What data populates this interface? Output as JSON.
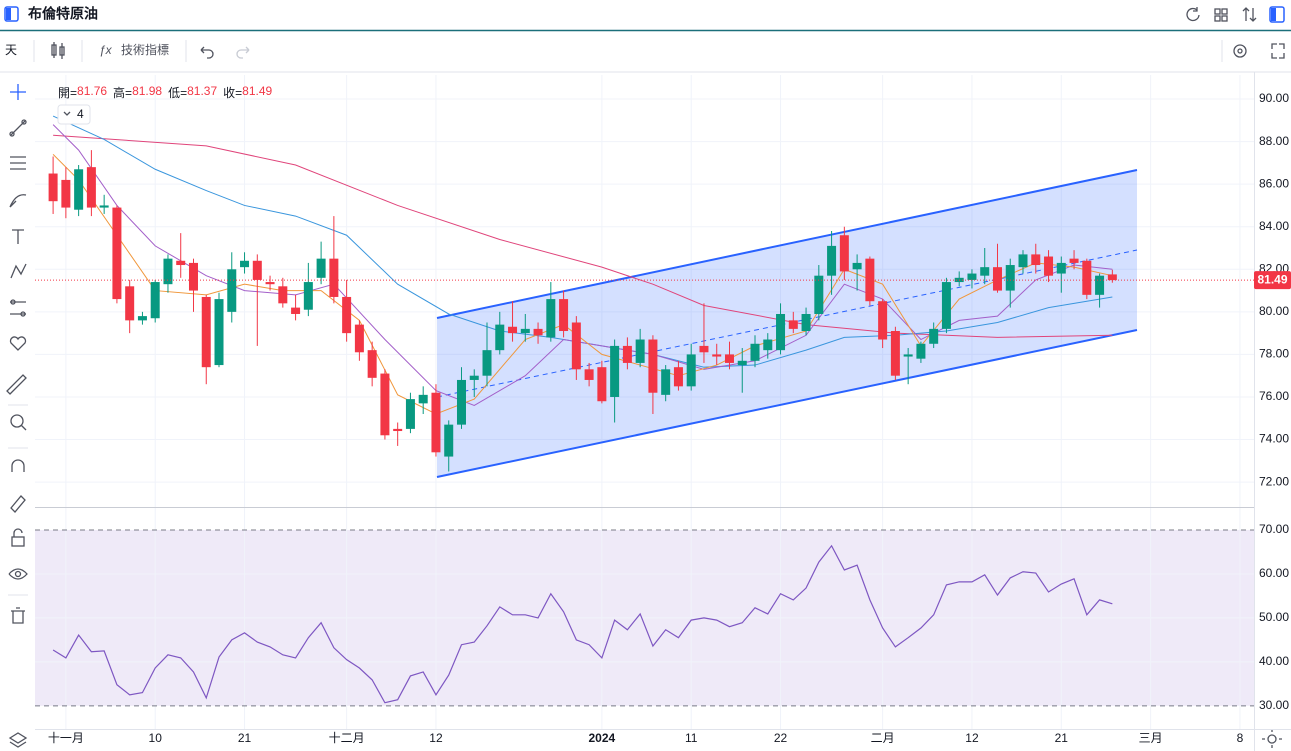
{
  "header": {
    "title": "布倫特原油"
  },
  "toolbar": {
    "interval": "天",
    "indicators": "技術指標",
    "indicator_count": 4
  },
  "chart_data": {
    "type": "candlestick",
    "up_color": "#089981",
    "down_color": "#f23645",
    "open": [
      86.5,
      86.2,
      84.8,
      86.8,
      84.9,
      84.9,
      81.2,
      79.6,
      79.7,
      81.3,
      82.4,
      82.3,
      80.7,
      77.5,
      80.0,
      82.1,
      82.4,
      81.4,
      81.2,
      80.2,
      80.1,
      81.6,
      82.5,
      80.7,
      79.4,
      78.2,
      77.1,
      74.5,
      74.5,
      75.7,
      76.2,
      73.2,
      74.7,
      76.8,
      77.0,
      78.2,
      79.3,
      79.0,
      79.2,
      78.8,
      80.6,
      79.5,
      77.3,
      77.4,
      76.0,
      78.4,
      77.6,
      78.7,
      76.1,
      77.4,
      76.5,
      78.4,
      78.0,
      78.0,
      77.5,
      77.7,
      78.2,
      78.2,
      79.6,
      79.1,
      79.9,
      81.7,
      83.6,
      82.0,
      82.5,
      80.5,
      79.1,
      77.9,
      77.8,
      78.5,
      79.2,
      81.4,
      81.5,
      81.7,
      82.1,
      81.0,
      82.1,
      82.7,
      82.6,
      81.8,
      82.5,
      82.4,
      80.8,
      81.76
    ],
    "high": [
      87.3,
      86.8,
      86.9,
      87.6,
      85.5,
      85.0,
      81.5,
      80.0,
      81.5,
      82.7,
      83.7,
      82.5,
      80.8,
      80.9,
      82.8,
      82.8,
      82.7,
      81.7,
      81.6,
      80.8,
      82.3,
      83.3,
      84.5,
      81.5,
      79.6,
      78.6,
      77.3,
      74.8,
      76.2,
      76.5,
      76.6,
      74.9,
      77.4,
      77.3,
      79.5,
      80.0,
      80.5,
      79.9,
      79.5,
      81.4,
      81.0,
      79.8,
      77.6,
      77.7,
      78.7,
      78.8,
      79.2,
      78.9,
      77.5,
      77.7,
      78.5,
      80.4,
      78.5,
      78.6,
      78.3,
      78.9,
      79.0,
      80.4,
      80.0,
      80.2,
      82.2,
      83.8,
      84.0,
      82.7,
      82.6,
      80.6,
      79.3,
      78.3,
      78.6,
      79.5,
      81.6,
      81.9,
      82.0,
      83.0,
      83.2,
      82.5,
      82.9,
      83.2,
      82.9,
      82.6,
      82.9,
      82.5,
      81.8,
      81.98
    ],
    "low": [
      84.6,
      84.4,
      84.5,
      84.5,
      84.6,
      80.4,
      79.0,
      79.4,
      79.5,
      80.9,
      81.6,
      80.0,
      76.6,
      77.4,
      79.5,
      81.8,
      78.4,
      81.0,
      80.2,
      79.6,
      79.8,
      81.3,
      80.4,
      78.6,
      77.7,
      76.5,
      74.0,
      73.7,
      74.3,
      75.2,
      73.2,
      72.5,
      74.5,
      76.0,
      76.5,
      78.0,
      78.6,
      78.6,
      78.5,
      78.6,
      78.8,
      76.8,
      76.5,
      75.7,
      74.8,
      77.3,
      77.4,
      75.2,
      75.8,
      76.3,
      76.3,
      77.6,
      77.5,
      77.3,
      76.2,
      77.4,
      77.8,
      78.0,
      79.0,
      78.9,
      79.6,
      80.8,
      81.5,
      81.0,
      80.3,
      78.3,
      76.8,
      76.6,
      77.6,
      78.3,
      79.0,
      81.2,
      81.1,
      81.3,
      80.9,
      80.2,
      81.8,
      81.8,
      81.4,
      80.9,
      82.0,
      80.6,
      80.2,
      81.37
    ],
    "close": [
      85.2,
      84.9,
      86.7,
      84.9,
      85.0,
      80.6,
      79.6,
      79.8,
      81.4,
      82.5,
      82.2,
      81.0,
      77.4,
      80.6,
      82.0,
      82.4,
      81.5,
      81.3,
      80.4,
      79.9,
      81.4,
      82.5,
      80.7,
      79.0,
      78.1,
      76.9,
      74.2,
      74.4,
      75.9,
      76.1,
      73.4,
      74.7,
      76.8,
      77.0,
      78.2,
      79.4,
      79.0,
      79.2,
      78.9,
      80.6,
      79.1,
      77.3,
      76.8,
      75.8,
      78.4,
      77.6,
      78.7,
      76.2,
      77.3,
      76.5,
      78.0,
      78.1,
      77.9,
      77.6,
      77.7,
      78.5,
      78.7,
      79.9,
      79.2,
      79.9,
      81.7,
      83.1,
      81.9,
      82.3,
      80.5,
      78.7,
      77.0,
      78.0,
      78.5,
      79.2,
      81.4,
      81.6,
      81.8,
      82.1,
      81.0,
      82.2,
      82.7,
      82.2,
      81.7,
      82.3,
      82.3,
      80.8,
      81.7,
      81.49
    ],
    "overlays": [
      {
        "color": "#e0457b",
        "x": [
          0,
          12,
          19,
          27,
          35,
          43,
          47,
          51,
          59,
          66,
          74,
          83
        ],
        "values": [
          88.3,
          87.8,
          86.9,
          85.0,
          83.4,
          82.1,
          81.3,
          80.3,
          79.4,
          79.0,
          78.8,
          78.9
        ]
      },
      {
        "color": "#3a96dd",
        "x": [
          0,
          4,
          8,
          12,
          15,
          19,
          23,
          27,
          31,
          35,
          39,
          43,
          47,
          51,
          55,
          59,
          62,
          66,
          70,
          74,
          78,
          83
        ],
        "values": [
          89.2,
          88.1,
          86.7,
          85.7,
          85.0,
          84.5,
          83.6,
          81.3,
          79.9,
          79.1,
          78.8,
          78.4,
          78.0,
          77.4,
          77.5,
          78.2,
          78.8,
          78.9,
          79.1,
          79.5,
          80.2,
          80.7
        ]
      },
      {
        "color": "#a35fc9",
        "x": [
          0,
          2,
          5,
          8,
          12,
          15,
          19,
          22,
          26,
          30,
          33,
          37,
          40,
          43,
          47,
          51,
          55,
          59,
          62,
          65,
          68,
          71,
          74,
          77,
          80,
          83
        ],
        "values": [
          88.8,
          87.6,
          85.0,
          83.1,
          81.7,
          81.0,
          80.8,
          81.3,
          78.7,
          76.3,
          75.6,
          77.0,
          78.7,
          78.4,
          78.0,
          77.3,
          77.7,
          78.9,
          81.3,
          80.6,
          78.7,
          79.6,
          79.8,
          81.5,
          82.2,
          82.0
        ]
      },
      {
        "color": "#f0973b",
        "x": [
          0,
          2,
          5,
          8,
          12,
          15,
          18,
          21,
          24,
          27,
          30,
          33,
          37,
          40,
          43,
          46,
          49,
          52,
          55,
          59,
          62,
          65,
          68,
          71,
          74,
          77,
          80,
          83
        ],
        "values": [
          87.4,
          86.2,
          83.6,
          81.0,
          80.8,
          81.3,
          81.0,
          81.0,
          79.6,
          76.1,
          75.2,
          75.9,
          78.7,
          79.4,
          78.0,
          77.5,
          77.0,
          77.5,
          78.4,
          79.1,
          82.0,
          81.3,
          78.4,
          80.6,
          81.5,
          82.3,
          82.1,
          81.7
        ]
      }
    ],
    "ohlc_legend": [
      {
        "label": "開=",
        "value": 81.76
      },
      {
        "label": "高=",
        "value": 81.98
      },
      {
        "label": "低=",
        "value": 81.37
      },
      {
        "label": "收=",
        "value": 81.49
      }
    ],
    "last_price": 81.49,
    "last_price_color": "#f23645",
    "xlim": [
      -0.4,
      94.1
    ],
    "xticks": [
      {
        "value": 1,
        "label": "十一月"
      },
      {
        "value": 8,
        "label": "10"
      },
      {
        "value": 15,
        "label": "21"
      },
      {
        "value": 23,
        "label": "十二月"
      },
      {
        "value": 30,
        "label": "12"
      },
      {
        "value": 43,
        "label": "2024"
      },
      {
        "value": 50,
        "label": "11"
      },
      {
        "value": 57,
        "label": "22"
      },
      {
        "value": 65,
        "label": "二月"
      },
      {
        "value": 72,
        "label": "12"
      },
      {
        "value": 79,
        "label": "21"
      },
      {
        "value": 86,
        "label": "三月"
      },
      {
        "value": 93,
        "label": "8"
      }
    ],
    "ylim": [
      70.83,
      91.13
    ],
    "yticks": [
      {
        "value": 72,
        "label": "72.00"
      },
      {
        "value": 74,
        "label": "74.00"
      },
      {
        "value": 76,
        "label": "76.00"
      },
      {
        "value": 78,
        "label": "78.00"
      },
      {
        "value": 80,
        "label": "80.00"
      },
      {
        "value": 82,
        "label": "82.00"
      },
      {
        "value": 84,
        "label": "84.00"
      },
      {
        "value": 86,
        "label": "86.00"
      },
      {
        "value": 88,
        "label": "88.00"
      },
      {
        "value": 90,
        "label": "90.00"
      }
    ],
    "grid": true,
    "rsi": {
      "color": "#7e57c2",
      "band_color": "#efeaf8",
      "values": [
        42.7,
        40.9,
        46.1,
        42.3,
        42.5,
        34.8,
        32.5,
        33.0,
        38.6,
        41.6,
        40.9,
        37.7,
        31.8,
        41.1,
        45.0,
        46.6,
        44.5,
        43.4,
        41.6,
        40.9,
        45.5,
        48.9,
        43.2,
        40.5,
        38.6,
        35.9,
        30.7,
        31.4,
        36.8,
        37.7,
        32.5,
        37.0,
        43.9,
        44.5,
        48.2,
        52.5,
        50.7,
        50.7,
        50.0,
        55.5,
        51.4,
        45.0,
        43.9,
        40.9,
        49.5,
        47.3,
        50.9,
        43.6,
        47.3,
        45.5,
        49.5,
        50.0,
        49.5,
        48.0,
        48.9,
        52.3,
        50.9,
        55.5,
        54.1,
        56.8,
        62.7,
        66.4,
        60.9,
        62.0,
        54.1,
        47.7,
        43.4,
        45.5,
        47.7,
        50.7,
        57.5,
        58.2,
        58.2,
        59.8,
        55.2,
        59.1,
        60.5,
        60.2,
        55.9,
        57.7,
        58.9,
        50.7,
        54.1,
        53.2
      ],
      "ylim": [
        24.5,
        75
      ],
      "yticks": [
        {
          "value": 30,
          "label": "30.00"
        },
        {
          "value": 40,
          "label": "40.00"
        },
        {
          "value": 50,
          "label": "50.00"
        },
        {
          "value": 60,
          "label": "60.00"
        },
        {
          "value": 70,
          "label": "70.00"
        }
      ]
    }
  }
}
